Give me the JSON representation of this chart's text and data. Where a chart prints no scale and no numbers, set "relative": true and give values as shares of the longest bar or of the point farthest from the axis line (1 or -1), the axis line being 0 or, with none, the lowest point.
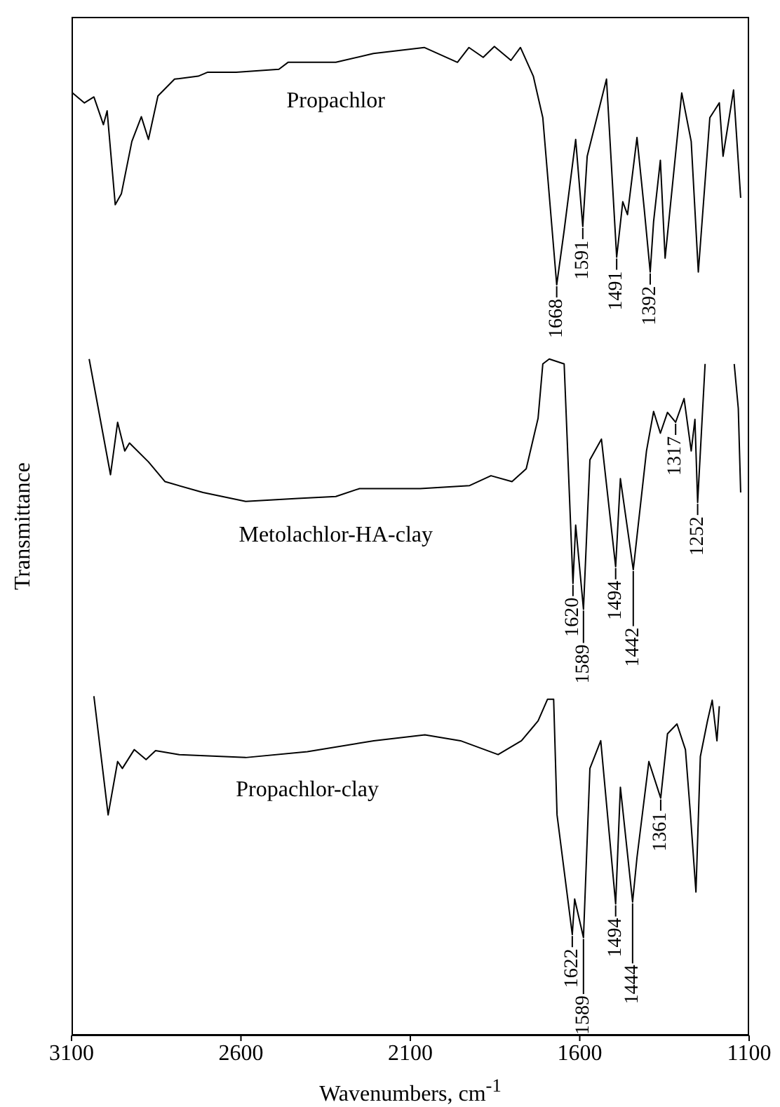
{
  "chart_data": {
    "type": "line",
    "relative": true,
    "xlabel": "Wavenumbers, cm$^{-1}$",
    "ylabel": "Transmittance",
    "xlim": [
      3100,
      1100
    ],
    "xticks": [
      3100,
      2600,
      2100,
      1600,
      1100
    ],
    "series": [
      {
        "name": "Propachlor",
        "color": "#000000",
        "x": [
          3097,
          3062,
          3034,
          3006,
          2995,
          2971,
          2953,
          2922,
          2894,
          2873,
          2845,
          2796,
          2726,
          2698,
          2614,
          2488,
          2461,
          2320,
          2209,
          2059,
          1961,
          1927,
          1885,
          1852,
          1803,
          1775,
          1737,
          1709,
          1668,
          1646,
          1612,
          1591,
          1578,
          1521,
          1491,
          1473,
          1459,
          1431,
          1410,
          1392,
          1382,
          1362,
          1348,
          1299,
          1271,
          1250,
          1216,
          1188,
          1177,
          1146,
          1125
        ],
        "values": [
          0.953,
          0.943,
          0.949,
          0.921,
          0.935,
          0.84,
          0.851,
          0.904,
          0.929,
          0.906,
          0.95,
          0.967,
          0.97,
          0.974,
          0.974,
          0.977,
          0.984,
          0.984,
          0.993,
          0.999,
          0.984,
          0.999,
          0.989,
          1.0,
          0.986,
          0.999,
          0.97,
          0.928,
          0.759,
          0.814,
          0.906,
          0.818,
          0.889,
          0.967,
          0.787,
          0.843,
          0.83,
          0.908,
          0.837,
          0.772,
          0.823,
          0.885,
          0.786,
          0.953,
          0.904,
          0.772,
          0.928,
          0.943,
          0.889,
          0.956,
          0.847
        ]
      },
      {
        "name": "Metolachlor-HA-clay",
        "color": "#000000",
        "x": [
          3048,
          2985,
          2964,
          2943,
          2929,
          2873,
          2824,
          2712,
          2586,
          2432,
          2320,
          2250,
          2071,
          1925,
          1862,
          1800,
          1758,
          1723,
          1709,
          1690,
          1646,
          1620,
          1612,
          1589,
          1570,
          1536,
          1494,
          1480,
          1442,
          1403,
          1382,
          1362,
          1341,
          1317,
          1292,
          1271,
          1260,
          1252,
          1230,
          1190,
          1144,
          1132,
          1125
        ],
        "values": [
          0.684,
          0.567,
          0.62,
          0.591,
          0.599,
          0.58,
          0.56,
          0.549,
          0.54,
          0.543,
          0.545,
          0.553,
          0.553,
          0.556,
          0.566,
          0.56,
          0.573,
          0.624,
          0.679,
          0.684,
          0.679,
          0.457,
          0.516,
          0.431,
          0.582,
          0.603,
          0.474,
          0.563,
          0.471,
          0.591,
          0.631,
          0.609,
          0.63,
          0.62,
          0.644,
          0.591,
          0.623,
          0.539,
          0.679,
          null,
          0.679,
          0.634,
          0.549
        ]
      },
      {
        "name": "Propachlor-clay",
        "color": "#000000",
        "x": [
          3034,
          2992,
          2964,
          2950,
          2915,
          2880,
          2852,
          2782,
          2586,
          2404,
          2208,
          2057,
          1952,
          1841,
          1772,
          1723,
          1695,
          1677,
          1667,
          1622,
          1615,
          1589,
          1570,
          1538,
          1494,
          1480,
          1444,
          1431,
          1396,
          1361,
          1341,
          1313,
          1288,
          1274,
          1257,
          1244,
          1223,
          1209,
          1195,
          1188
        ],
        "values": [
          0.343,
          0.223,
          0.277,
          0.27,
          0.289,
          0.279,
          0.288,
          0.284,
          0.281,
          0.287,
          0.298,
          0.304,
          0.298,
          0.284,
          0.298,
          0.318,
          0.34,
          0.34,
          0.223,
          0.102,
          0.138,
          0.099,
          0.27,
          0.298,
          0.133,
          0.251,
          0.135,
          0.18,
          0.277,
          0.24,
          0.305,
          0.315,
          0.289,
          0.227,
          0.145,
          0.282,
          0.318,
          0.339,
          0.298,
          0.333
        ]
      }
    ],
    "annotations": [
      {
        "text": "1668",
        "x": 1668,
        "y": 0.759
      },
      {
        "text": "1591",
        "x": 1591,
        "y": 0.818
      },
      {
        "text": "1491",
        "x": 1491,
        "y": 0.787
      },
      {
        "text": "1392",
        "x": 1392,
        "y": 0.772
      },
      {
        "text": "1620",
        "x": 1620,
        "y": 0.457
      },
      {
        "text": "1589",
        "x": 1589,
        "y": 0.431
      },
      {
        "text": "1494",
        "x": 1494,
        "y": 0.474
      },
      {
        "text": "1442",
        "x": 1442,
        "y": 0.471
      },
      {
        "text": "1317",
        "x": 1317,
        "y": 0.62
      },
      {
        "text": "1252",
        "x": 1252,
        "y": 0.539
      },
      {
        "text": "1622",
        "x": 1622,
        "y": 0.102
      },
      {
        "text": "1589",
        "x": 1589,
        "y": 0.099
      },
      {
        "text": "1494",
        "x": 1494,
        "y": 0.133
      },
      {
        "text": "1444",
        "x": 1444,
        "y": 0.135
      },
      {
        "text": "1361",
        "x": 1361,
        "y": 0.24
      }
    ]
  }
}
